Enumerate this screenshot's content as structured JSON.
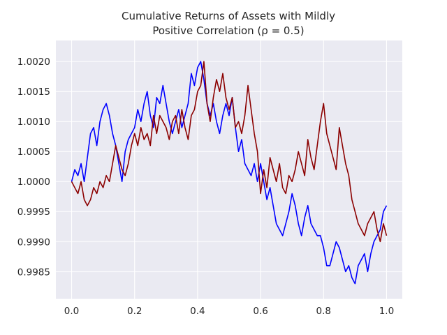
{
  "chart_data": {
    "type": "line",
    "title_line1": "Cumulative Returns of Assets with Mildly",
    "title_line2": "Positive Correlation (ρ = 0.5)",
    "xlabel": "",
    "ylabel": "",
    "xlim": [
      -0.05,
      1.05
    ],
    "ylim": [
      0.99805,
      1.00235
    ],
    "x_ticks": [
      "0.0",
      "0.2",
      "0.4",
      "0.6",
      "0.8",
      "1.0"
    ],
    "x_tick_values": [
      0.0,
      0.2,
      0.4,
      0.6,
      0.8,
      1.0
    ],
    "y_ticks": [
      "0.9985",
      "0.9990",
      "0.9995",
      "1.0000",
      "1.0005",
      "1.0010",
      "1.0015",
      "1.0020"
    ],
    "y_tick_values": [
      0.9985,
      0.999,
      0.9995,
      1.0,
      1.0005,
      1.001,
      1.0015,
      1.002
    ],
    "grid": true,
    "background": "#eaeaf2",
    "series": [
      {
        "color": "#0000ff",
        "x": [
          0.0,
          0.01,
          0.02,
          0.03,
          0.04,
          0.05,
          0.06,
          0.07,
          0.08,
          0.09,
          0.1,
          0.11,
          0.12,
          0.13,
          0.14,
          0.15,
          0.16,
          0.17,
          0.18,
          0.19,
          0.2,
          0.21,
          0.22,
          0.23,
          0.24,
          0.25,
          0.26,
          0.27,
          0.28,
          0.29,
          0.3,
          0.31,
          0.32,
          0.33,
          0.34,
          0.35,
          0.36,
          0.37,
          0.38,
          0.39,
          0.4,
          0.41,
          0.42,
          0.43,
          0.44,
          0.45,
          0.46,
          0.47,
          0.48,
          0.49,
          0.5,
          0.51,
          0.52,
          0.53,
          0.54,
          0.55,
          0.56,
          0.57,
          0.58,
          0.59,
          0.6,
          0.61,
          0.62,
          0.63,
          0.64,
          0.65,
          0.66,
          0.67,
          0.68,
          0.69,
          0.7,
          0.71,
          0.72,
          0.73,
          0.74,
          0.75,
          0.76,
          0.77,
          0.78,
          0.79,
          0.8,
          0.81,
          0.82,
          0.83,
          0.84,
          0.85,
          0.86,
          0.87,
          0.88,
          0.89,
          0.9,
          0.91,
          0.92,
          0.93,
          0.94,
          0.95,
          0.96,
          0.97,
          0.98,
          0.99,
          1.0
        ],
        "y": [
          1.0,
          1.0002,
          1.0001,
          1.0003,
          1.0,
          1.0004,
          1.0008,
          1.0009,
          1.0006,
          1.001,
          1.0012,
          1.0013,
          1.0011,
          1.0008,
          1.0006,
          1.0003,
          1.0,
          1.0005,
          1.0007,
          1.0008,
          1.0009,
          1.0012,
          1.001,
          1.0013,
          1.0015,
          1.0011,
          1.0009,
          1.0014,
          1.0013,
          1.0016,
          1.0013,
          1.001,
          1.0008,
          1.001,
          1.0012,
          1.0009,
          1.0011,
          1.0013,
          1.0018,
          1.0016,
          1.0019,
          1.002,
          1.0017,
          1.0013,
          1.0011,
          1.0013,
          1.001,
          1.0008,
          1.0011,
          1.0013,
          1.0011,
          1.0014,
          1.0009,
          1.0005,
          1.0007,
          1.0003,
          1.0002,
          1.0001,
          1.0003,
          1.0,
          1.0003,
          1.0,
          0.9997,
          0.9999,
          0.9996,
          0.9993,
          0.9992,
          0.9991,
          0.9993,
          0.9995,
          0.9998,
          0.9996,
          0.9993,
          0.9991,
          0.9994,
          0.9996,
          0.9993,
          0.9992,
          0.9991,
          0.9991,
          0.9989,
          0.9986,
          0.9986,
          0.9988,
          0.999,
          0.9989,
          0.9987,
          0.9985,
          0.9986,
          0.9984,
          0.9983,
          0.9986,
          0.9987,
          0.9988,
          0.9985,
          0.9988,
          0.999,
          0.9991,
          0.9992,
          0.9995,
          0.9996
        ]
      },
      {
        "color": "#8b0000",
        "x": [
          0.0,
          0.01,
          0.02,
          0.03,
          0.04,
          0.05,
          0.06,
          0.07,
          0.08,
          0.09,
          0.1,
          0.11,
          0.12,
          0.13,
          0.14,
          0.15,
          0.16,
          0.17,
          0.18,
          0.19,
          0.2,
          0.21,
          0.22,
          0.23,
          0.24,
          0.25,
          0.26,
          0.27,
          0.28,
          0.29,
          0.3,
          0.31,
          0.32,
          0.33,
          0.34,
          0.35,
          0.36,
          0.37,
          0.38,
          0.39,
          0.4,
          0.41,
          0.42,
          0.43,
          0.44,
          0.45,
          0.46,
          0.47,
          0.48,
          0.49,
          0.5,
          0.51,
          0.52,
          0.53,
          0.54,
          0.55,
          0.56,
          0.57,
          0.58,
          0.59,
          0.6,
          0.61,
          0.62,
          0.63,
          0.64,
          0.65,
          0.66,
          0.67,
          0.68,
          0.69,
          0.7,
          0.71,
          0.72,
          0.73,
          0.74,
          0.75,
          0.76,
          0.77,
          0.78,
          0.79,
          0.8,
          0.81,
          0.82,
          0.83,
          0.84,
          0.85,
          0.86,
          0.87,
          0.88,
          0.89,
          0.9,
          0.91,
          0.92,
          0.93,
          0.94,
          0.95,
          0.96,
          0.97,
          0.98,
          0.99,
          1.0
        ],
        "y": [
          1.0,
          0.9999,
          0.9998,
          1.0,
          0.9997,
          0.9996,
          0.9997,
          0.9999,
          0.9998,
          1.0,
          0.9999,
          1.0001,
          1.0,
          1.0003,
          1.0006,
          1.0004,
          1.0002,
          1.0001,
          1.0003,
          1.0006,
          1.0008,
          1.0006,
          1.0009,
          1.0007,
          1.0008,
          1.0006,
          1.0011,
          1.0008,
          1.0011,
          1.001,
          1.0009,
          1.0007,
          1.001,
          1.0011,
          1.0008,
          1.0012,
          1.0009,
          1.0007,
          1.0011,
          1.0012,
          1.0015,
          1.0016,
          1.002,
          1.0013,
          1.001,
          1.0014,
          1.0017,
          1.0015,
          1.0018,
          1.0014,
          1.0012,
          1.0014,
          1.0009,
          1.001,
          1.0008,
          1.0011,
          1.0016,
          1.0012,
          1.0008,
          1.0005,
          0.9998,
          1.0002,
          0.9999,
          1.0004,
          1.0002,
          1.0,
          1.0003,
          0.9999,
          0.9998,
          1.0001,
          1.0,
          1.0002,
          1.0005,
          1.0003,
          1.0001,
          1.0007,
          1.0004,
          1.0002,
          1.0006,
          1.001,
          1.0013,
          1.0008,
          1.0006,
          1.0004,
          1.0002,
          1.0009,
          1.0006,
          1.0003,
          1.0001,
          0.9997,
          0.9995,
          0.9993,
          0.9992,
          0.9991,
          0.9993,
          0.9994,
          0.9995,
          0.9992,
          0.999,
          0.9993,
          0.9991
        ]
      }
    ]
  }
}
